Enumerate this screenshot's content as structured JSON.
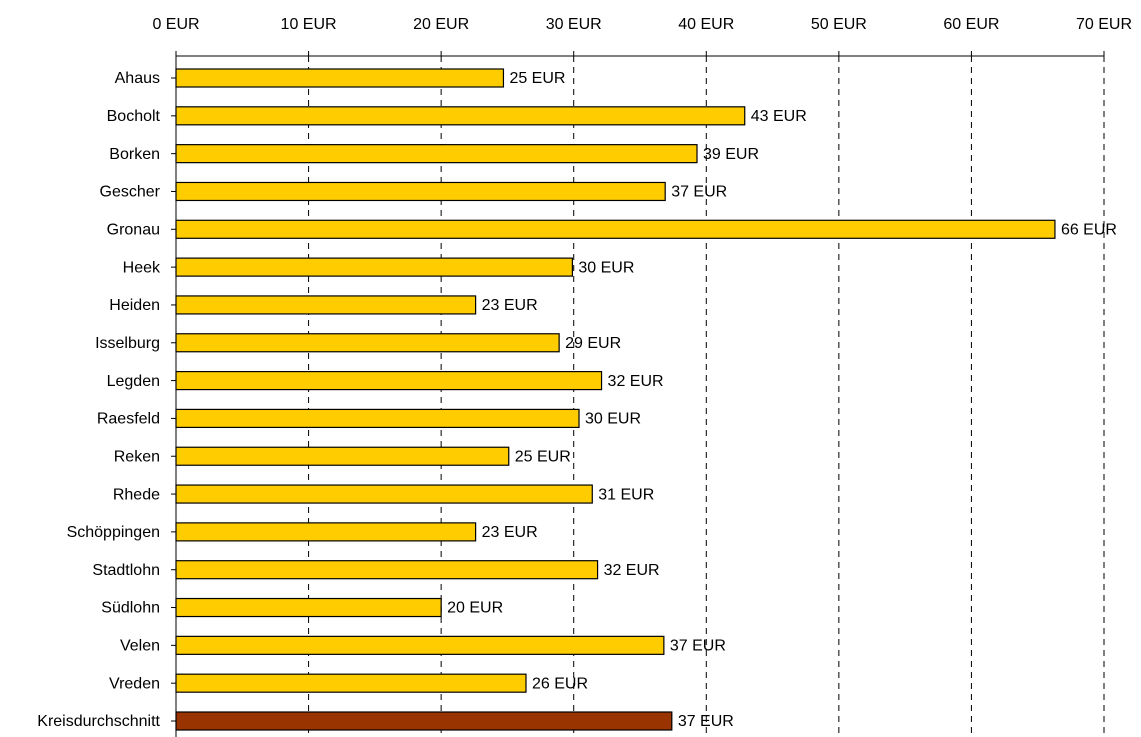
{
  "chart_data": {
    "type": "bar",
    "orientation": "horizontal",
    "categories": [
      "Ahaus",
      "Bocholt",
      "Borken",
      "Gescher",
      "Gronau",
      "Heek",
      "Heiden",
      "Isselburg",
      "Legden",
      "Raesfeld",
      "Reken",
      "Rhede",
      "Schöppingen",
      "Stadtlohn",
      "Südlohn",
      "Velen",
      "Vreden",
      "Kreisdurchschnitt"
    ],
    "values": [
      24.7,
      42.9,
      39.3,
      36.9,
      66.3,
      29.9,
      22.6,
      28.9,
      32.1,
      30.4,
      25.1,
      31.4,
      22.6,
      31.8,
      20.0,
      36.8,
      26.4,
      37.4
    ],
    "value_labels": [
      "25 EUR",
      "43 EUR",
      "39 EUR",
      "37 EUR",
      "66 EUR",
      "30 EUR",
      "23 EUR",
      "29 EUR",
      "32 EUR",
      "30 EUR",
      "25 EUR",
      "31 EUR",
      "23 EUR",
      "32 EUR",
      "20 EUR",
      "37 EUR",
      "26 EUR",
      "37 EUR"
    ],
    "colors": [
      "#ffcc00",
      "#ffcc00",
      "#ffcc00",
      "#ffcc00",
      "#ffcc00",
      "#ffcc00",
      "#ffcc00",
      "#ffcc00",
      "#ffcc00",
      "#ffcc00",
      "#ffcc00",
      "#ffcc00",
      "#ffcc00",
      "#ffcc00",
      "#ffcc00",
      "#ffcc00",
      "#ffcc00",
      "#993300"
    ],
    "xlim": [
      0,
      70
    ],
    "xticks": [
      {
        "value": 0,
        "label": "0 EUR"
      },
      {
        "value": 10,
        "label": "10 EUR"
      },
      {
        "value": 20,
        "label": "20 EUR"
      },
      {
        "value": 30,
        "label": "30 EUR"
      },
      {
        "value": 40,
        "label": "40 EUR"
      },
      {
        "value": 50,
        "label": "50 EUR"
      },
      {
        "value": 60,
        "label": "60 EUR"
      },
      {
        "value": 70,
        "label": "70 EUR"
      }
    ],
    "grid": true
  }
}
